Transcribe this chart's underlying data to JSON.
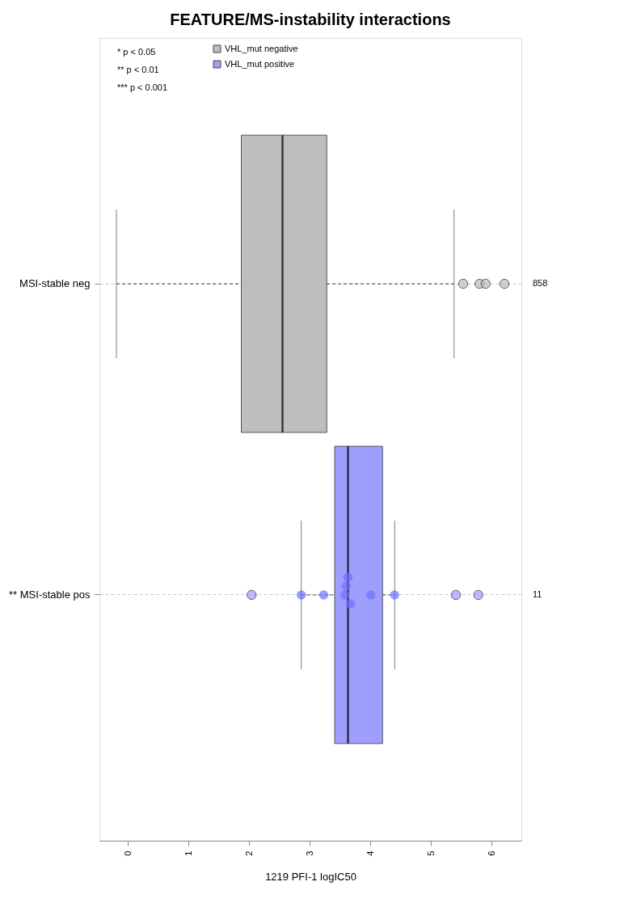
{
  "chart_data": {
    "type": "box",
    "orientation": "horizontal",
    "title": "FEATURE/MS-instability interactions",
    "xlabel": "1219 PFI-1 logIC50",
    "categories": [
      "MSI-stable neg",
      "** MSI-stable pos"
    ],
    "series": [
      {
        "name": "VHL_mut negative",
        "color": "#bebebe",
        "boxes": [
          {
            "low": -0.19,
            "q1": 1.87,
            "median": 2.55,
            "q3": 3.28,
            "high": 5.38,
            "outliers": [
              5.53,
              5.8,
              5.9,
              6.21
            ]
          },
          null
        ]
      },
      {
        "name": "VHL_mut positive",
        "color": "#9e9eff",
        "boxes": [
          null,
          {
            "low": 2.86,
            "q1": 3.41,
            "median": 3.63,
            "q3": 4.2,
            "high": 4.4,
            "outliers": [
              2.04,
              5.41,
              5.78
            ]
          }
        ]
      },
      {
        "type": "scatter",
        "color": "#6f6fff",
        "x": [
          "** MSI-stable pos",
          "** MSI-stable pos",
          "** MSI-stable pos",
          "** MSI-stable pos",
          "** MSI-stable pos",
          "** MSI-stable pos",
          "** MSI-stable pos",
          "** MSI-stable pos"
        ],
        "values": [
          2.86,
          3.23,
          3.58,
          3.6,
          3.67,
          3.63,
          4.01,
          4.4
        ]
      }
    ],
    "xlim": [
      -0.47,
      6.49
    ],
    "xticks": [
      0,
      1,
      2,
      3,
      4,
      5,
      6
    ],
    "grid": "y",
    "legend": "top left",
    "annotations": [
      "* p < 0.05",
      "** p < 0.01",
      "*** p < 0.001",
      "858",
      "11"
    ]
  }
}
